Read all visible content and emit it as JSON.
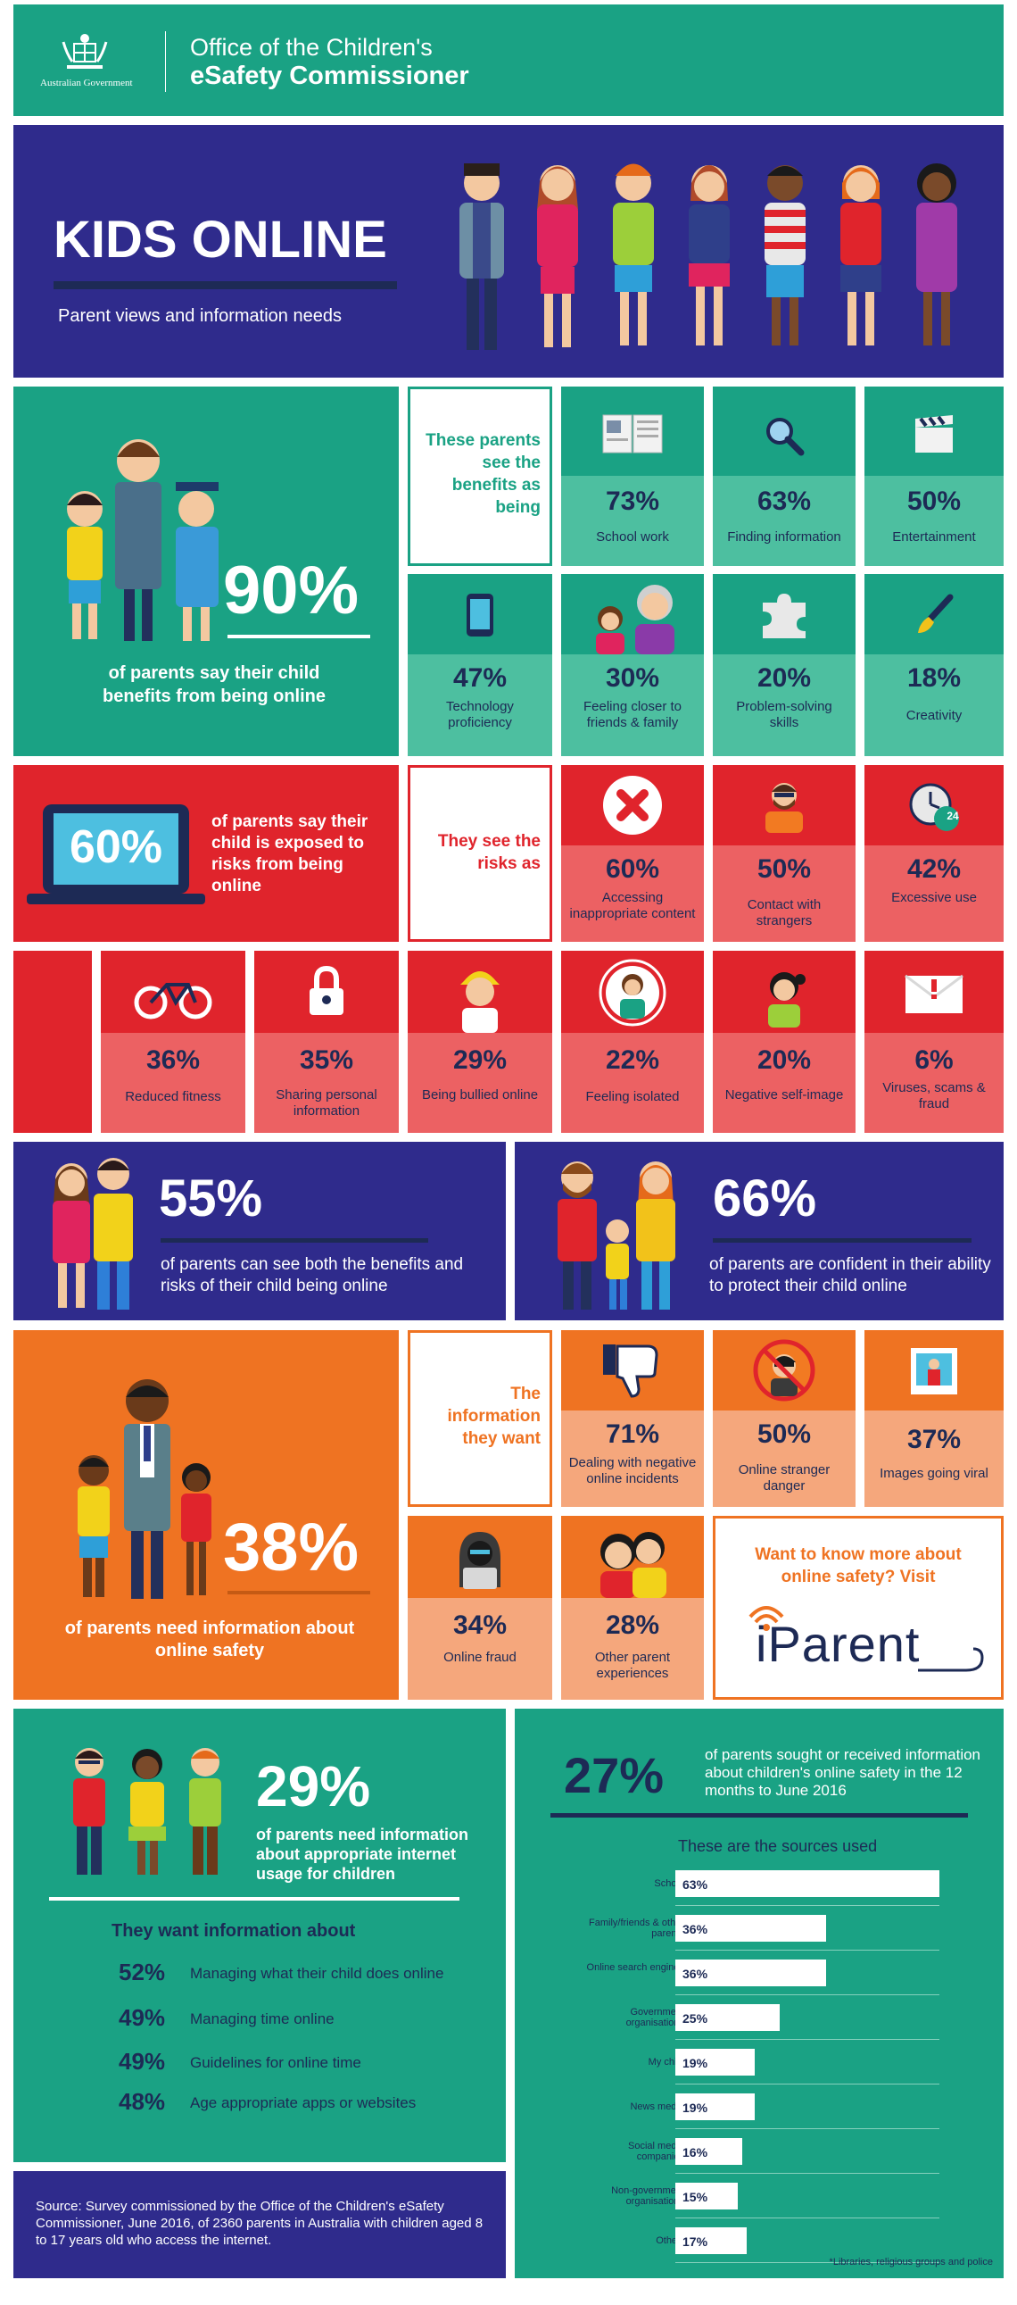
{
  "header": {
    "gov_label": "Australian Government",
    "office_line1": "Office of the Children's",
    "office_line2": "eSafety Commissioner"
  },
  "hero": {
    "title": "KIDS ONLINE",
    "subtitle": "Parent views and information needs"
  },
  "benefits": {
    "big_pct": "90%",
    "big_text": "of parents say their child benefits from being online",
    "intro": "These parents see the benefits as being",
    "items": [
      {
        "pct": "73%",
        "label": "School work",
        "icon": "book-icon"
      },
      {
        "pct": "63%",
        "label": "Finding information",
        "icon": "magnifier-icon"
      },
      {
        "pct": "50%",
        "label": "Entertainment",
        "icon": "clapperboard-icon"
      },
      {
        "pct": "47%",
        "label": "Technology proficiency",
        "icon": "phone-icon"
      },
      {
        "pct": "30%",
        "label": "Feeling closer to friends & family",
        "icon": "family-icon"
      },
      {
        "pct": "20%",
        "label": "Problem-solving skills",
        "icon": "puzzle-icon"
      },
      {
        "pct": "18%",
        "label": "Creativity",
        "icon": "paintbrush-icon"
      }
    ]
  },
  "risks": {
    "big_pct": "60%",
    "big_text": "of parents say their child is exposed to risks from being online",
    "intro": "They see the risks as",
    "items": [
      {
        "pct": "60%",
        "label": "Accessing inappropriate content",
        "icon": "x-icon"
      },
      {
        "pct": "50%",
        "label": "Contact with strangers",
        "icon": "stranger-icon"
      },
      {
        "pct": "42%",
        "label": "Excessive use",
        "icon": "clock-icon",
        "badge": "24"
      },
      {
        "pct": "36%",
        "label": "Reduced fitness",
        "icon": "bike-icon"
      },
      {
        "pct": "35%",
        "label": "Sharing personal information",
        "icon": "padlock-icon"
      },
      {
        "pct": "29%",
        "label": "Being bullied online",
        "icon": "bully-icon"
      },
      {
        "pct": "22%",
        "label": "Feeling isolated",
        "icon": "isolated-icon"
      },
      {
        "pct": "20%",
        "label": "Negative self-image",
        "icon": "girl-icon"
      },
      {
        "pct": "6%",
        "label": "Viruses, scams & fraud",
        "icon": "mail-alert-icon"
      }
    ]
  },
  "both": {
    "pct": "55%",
    "text": "of parents can see both the benefits and risks of their child being online"
  },
  "confident": {
    "pct": "66%",
    "text": "of parents are confident in their ability to protect their child online"
  },
  "info": {
    "big_pct": "38%",
    "big_text": "of parents need information about online safety",
    "intro": "The information they want",
    "items": [
      {
        "pct": "71%",
        "label": "Dealing with negative online incidents",
        "icon": "thumbs-down-icon"
      },
      {
        "pct": "50%",
        "label": "Online stranger danger",
        "icon": "stranger-danger-icon"
      },
      {
        "pct": "37%",
        "label": "Images going viral",
        "icon": "photo-icon"
      },
      {
        "pct": "34%",
        "label": "Online fraud",
        "icon": "hacker-icon"
      },
      {
        "pct": "28%",
        "label": "Other parent experiences",
        "icon": "parents-icon"
      }
    ],
    "cta": "Want to know more about online safety? Visit",
    "cta_logo": "iParent"
  },
  "usage": {
    "pct": "29%",
    "text": "of parents need information about appropriate internet usage for children",
    "want_title": "They want information about",
    "items": [
      {
        "pct": "52%",
        "label": "Managing what their child does online"
      },
      {
        "pct": "49%",
        "label": "Managing time online"
      },
      {
        "pct": "49%",
        "label": "Guidelines for online time"
      },
      {
        "pct": "48%",
        "label": "Age appropriate apps or websites"
      }
    ]
  },
  "source_note": "Source: Survey commissioned by the Office of the Children's eSafety Commissioner, June 2016, of 2360 parents in Australia with children aged 8 to 17 years old who access the internet.",
  "sought": {
    "pct": "27%",
    "text": "of parents sought or received information about children's online safety in the 12 months to June 2016",
    "sources_title": "These are the sources used",
    "footnote": "*Libraries, religious groups and police"
  },
  "chart_data": {
    "type": "bar",
    "title": "These are the sources used",
    "categories": [
      "School",
      "Family/friends & other parents",
      "Online search engines",
      "Government organisations",
      "My child",
      "News media",
      "Social media companies",
      "Non-government organisations",
      "Other*"
    ],
    "values": [
      63,
      36,
      36,
      25,
      19,
      19,
      16,
      15,
      17
    ],
    "value_labels": [
      "63%",
      "36%",
      "36%",
      "25%",
      "19%",
      "19%",
      "16%",
      "15%",
      "17%"
    ],
    "unit": "%",
    "xlim": [
      0,
      63
    ],
    "grid": false
  },
  "colors": {
    "teal": "#1aa284",
    "navy": "#2f2b8c",
    "red": "#e0242c",
    "orange": "#ef7322"
  }
}
